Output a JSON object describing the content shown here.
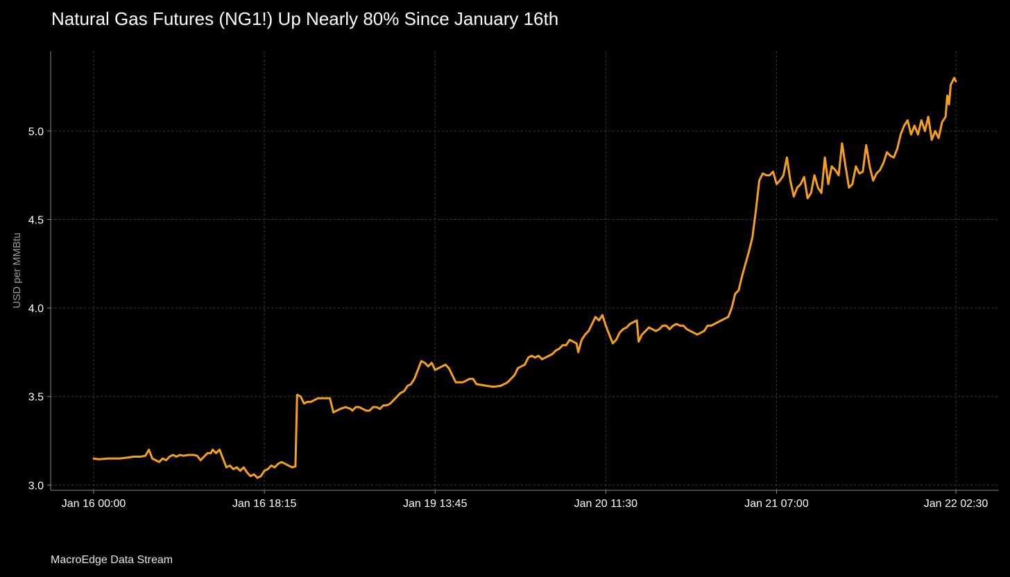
{
  "title": "Natural Gas Futures (NG1!) Up Nearly 80% Since January 16th",
  "footer": "MacroEdge Data Stream",
  "colors": {
    "background": "#000000",
    "line": "#f7a11a",
    "grid": "#3a3a3a",
    "axis": "#8a8a8a"
  },
  "chart_data": {
    "type": "line",
    "title": "Natural Gas Futures (NG1!) Up Nearly 80% Since January 16th",
    "xlabel": "",
    "ylabel": "USD per MMBtu",
    "grid": true,
    "ylim": [
      2.97,
      5.45
    ],
    "y_ticks": [
      3.0,
      3.5,
      4.0,
      4.5,
      5.0
    ],
    "y_tick_labels": [
      "3.0",
      "3.5",
      "4.0",
      "4.5",
      "5.0"
    ],
    "x_tick_labels": [
      "Jan 16 00:00",
      "Jan 16 18:15",
      "Jan 19 13:45",
      "Jan 20 11:30",
      "Jan 21 07:00",
      "Jan 22 02:30"
    ],
    "x_ticks_index": [
      0,
      99,
      198,
      297,
      396,
      500
    ],
    "series": [
      {
        "values": [
          [
            0,
            3.15
          ],
          [
            3,
            3.145
          ],
          [
            8,
            3.15
          ],
          [
            15,
            3.15
          ],
          [
            20,
            3.155
          ],
          [
            23,
            3.16
          ],
          [
            27,
            3.16
          ],
          [
            30,
            3.165
          ],
          [
            32,
            3.2
          ],
          [
            34,
            3.15
          ],
          [
            36,
            3.14
          ],
          [
            38,
            3.13
          ],
          [
            40,
            3.15
          ],
          [
            42,
            3.14
          ],
          [
            44,
            3.16
          ],
          [
            46,
            3.17
          ],
          [
            48,
            3.16
          ],
          [
            50,
            3.17
          ],
          [
            52,
            3.165
          ],
          [
            55,
            3.17
          ],
          [
            58,
            3.17
          ],
          [
            60,
            3.165
          ],
          [
            62,
            3.14
          ],
          [
            64,
            3.16
          ],
          [
            66,
            3.18
          ],
          [
            68,
            3.18
          ],
          [
            69,
            3.2
          ],
          [
            71,
            3.18
          ],
          [
            73,
            3.2
          ],
          [
            75,
            3.15
          ],
          [
            77,
            3.1
          ],
          [
            79,
            3.11
          ],
          [
            81,
            3.09
          ],
          [
            83,
            3.1
          ],
          [
            85,
            3.08
          ],
          [
            87,
            3.1
          ],
          [
            89,
            3.07
          ],
          [
            91,
            3.05
          ],
          [
            93,
            3.06
          ],
          [
            95,
            3.04
          ],
          [
            97,
            3.05
          ],
          [
            99,
            3.08
          ],
          [
            101,
            3.09
          ],
          [
            103,
            3.11
          ],
          [
            105,
            3.1
          ],
          [
            107,
            3.12
          ],
          [
            109,
            3.13
          ],
          [
            111,
            3.12
          ],
          [
            113,
            3.11
          ],
          [
            115,
            3.1
          ],
          [
            117,
            3.105
          ],
          [
            118,
            3.51
          ],
          [
            120,
            3.5
          ],
          [
            122,
            3.46
          ],
          [
            124,
            3.47
          ],
          [
            126,
            3.47
          ],
          [
            128,
            3.48
          ],
          [
            130,
            3.49
          ],
          [
            132,
            3.49
          ],
          [
            134,
            3.49
          ],
          [
            137,
            3.49
          ],
          [
            139,
            3.41
          ],
          [
            141,
            3.42
          ],
          [
            143,
            3.43
          ],
          [
            146,
            3.44
          ],
          [
            149,
            3.43
          ],
          [
            150,
            3.42
          ],
          [
            152,
            3.44
          ],
          [
            154,
            3.44
          ],
          [
            156,
            3.43
          ],
          [
            158,
            3.42
          ],
          [
            160,
            3.42
          ],
          [
            162,
            3.44
          ],
          [
            164,
            3.44
          ],
          [
            166,
            3.43
          ],
          [
            168,
            3.45
          ],
          [
            170,
            3.45
          ],
          [
            172,
            3.46
          ],
          [
            174,
            3.48
          ],
          [
            176,
            3.5
          ],
          [
            178,
            3.52
          ],
          [
            180,
            3.53
          ],
          [
            182,
            3.56
          ],
          [
            184,
            3.57
          ],
          [
            186,
            3.6
          ],
          [
            188,
            3.65
          ],
          [
            190,
            3.7
          ],
          [
            192,
            3.69
          ],
          [
            194,
            3.67
          ],
          [
            196,
            3.69
          ],
          [
            198,
            3.65
          ],
          [
            200,
            3.66
          ],
          [
            202,
            3.67
          ],
          [
            204,
            3.68
          ],
          [
            206,
            3.66
          ],
          [
            208,
            3.62
          ],
          [
            210,
            3.58
          ],
          [
            212,
            3.58
          ],
          [
            214,
            3.58
          ],
          [
            216,
            3.59
          ],
          [
            218,
            3.6
          ],
          [
            220,
            3.6
          ],
          [
            222,
            3.57
          ],
          [
            225,
            3.565
          ],
          [
            228,
            3.56
          ],
          [
            232,
            3.555
          ],
          [
            236,
            3.56
          ],
          [
            238,
            3.57
          ],
          [
            240,
            3.58
          ],
          [
            242,
            3.6
          ],
          [
            244,
            3.62
          ],
          [
            246,
            3.66
          ],
          [
            248,
            3.67
          ],
          [
            250,
            3.68
          ],
          [
            252,
            3.72
          ],
          [
            254,
            3.73
          ],
          [
            256,
            3.72
          ],
          [
            258,
            3.73
          ],
          [
            260,
            3.71
          ],
          [
            262,
            3.72
          ],
          [
            264,
            3.73
          ],
          [
            266,
            3.74
          ],
          [
            268,
            3.76
          ],
          [
            270,
            3.77
          ],
          [
            272,
            3.79
          ],
          [
            274,
            3.79
          ],
          [
            276,
            3.82
          ],
          [
            278,
            3.81
          ],
          [
            280,
            3.8
          ],
          [
            281,
            3.75
          ],
          [
            283,
            3.82
          ],
          [
            285,
            3.85
          ],
          [
            287,
            3.87
          ],
          [
            289,
            3.91
          ],
          [
            291,
            3.95
          ],
          [
            293,
            3.93
          ],
          [
            295,
            3.96
          ],
          [
            297,
            3.9
          ],
          [
            299,
            3.85
          ],
          [
            301,
            3.8
          ],
          [
            303,
            3.82
          ],
          [
            305,
            3.86
          ],
          [
            307,
            3.88
          ],
          [
            309,
            3.89
          ],
          [
            311,
            3.91
          ],
          [
            313,
            3.92
          ],
          [
            315,
            3.93
          ],
          [
            316,
            3.81
          ],
          [
            318,
            3.85
          ],
          [
            320,
            3.87
          ],
          [
            322,
            3.89
          ],
          [
            324,
            3.88
          ],
          [
            326,
            3.87
          ],
          [
            328,
            3.88
          ],
          [
            330,
            3.9
          ],
          [
            332,
            3.9
          ],
          [
            334,
            3.88
          ],
          [
            336,
            3.9
          ],
          [
            338,
            3.91
          ],
          [
            340,
            3.9
          ],
          [
            342,
            3.9
          ],
          [
            344,
            3.88
          ],
          [
            346,
            3.87
          ],
          [
            348,
            3.86
          ],
          [
            350,
            3.85
          ],
          [
            352,
            3.86
          ],
          [
            354,
            3.87
          ],
          [
            356,
            3.9
          ],
          [
            358,
            3.9
          ],
          [
            360,
            3.91
          ],
          [
            362,
            3.92
          ],
          [
            364,
            3.93
          ],
          [
            366,
            3.94
          ],
          [
            368,
            3.95
          ],
          [
            370,
            4.0
          ],
          [
            372,
            4.08
          ],
          [
            374,
            4.1
          ],
          [
            376,
            4.18
          ],
          [
            378,
            4.25
          ],
          [
            380,
            4.32
          ],
          [
            382,
            4.4
          ],
          [
            384,
            4.55
          ],
          [
            386,
            4.72
          ],
          [
            388,
            4.76
          ],
          [
            390,
            4.75
          ],
          [
            392,
            4.75
          ],
          [
            394,
            4.77
          ],
          [
            396,
            4.7
          ],
          [
            398,
            4.72
          ],
          [
            400,
            4.75
          ],
          [
            402,
            4.85
          ],
          [
            404,
            4.72
          ],
          [
            406,
            4.63
          ],
          [
            408,
            4.68
          ],
          [
            410,
            4.7
          ],
          [
            412,
            4.74
          ],
          [
            414,
            4.62
          ],
          [
            416,
            4.65
          ],
          [
            418,
            4.75
          ],
          [
            420,
            4.68
          ],
          [
            422,
            4.65
          ],
          [
            424,
            4.85
          ],
          [
            426,
            4.7
          ],
          [
            428,
            4.8
          ],
          [
            430,
            4.78
          ],
          [
            432,
            4.75
          ],
          [
            434,
            4.93
          ],
          [
            436,
            4.8
          ],
          [
            438,
            4.68
          ],
          [
            440,
            4.7
          ],
          [
            442,
            4.8
          ],
          [
            444,
            4.76
          ],
          [
            446,
            4.77
          ],
          [
            448,
            4.92
          ],
          [
            450,
            4.8
          ],
          [
            452,
            4.72
          ],
          [
            454,
            4.76
          ],
          [
            456,
            4.78
          ],
          [
            458,
            4.82
          ],
          [
            460,
            4.88
          ],
          [
            462,
            4.86
          ],
          [
            464,
            4.85
          ],
          [
            466,
            4.9
          ],
          [
            468,
            4.98
          ],
          [
            470,
            5.03
          ],
          [
            472,
            5.06
          ],
          [
            474,
            4.98
          ],
          [
            476,
            5.03
          ],
          [
            478,
            4.98
          ],
          [
            480,
            5.06
          ],
          [
            482,
            5.0
          ],
          [
            484,
            5.08
          ],
          [
            486,
            4.95
          ],
          [
            488,
            5.0
          ],
          [
            490,
            4.96
          ],
          [
            492,
            5.05
          ],
          [
            494,
            5.08
          ],
          [
            495,
            5.2
          ],
          [
            496,
            5.15
          ],
          [
            497,
            5.26
          ],
          [
            499,
            5.3
          ],
          [
            500,
            5.28
          ]
        ]
      }
    ]
  }
}
